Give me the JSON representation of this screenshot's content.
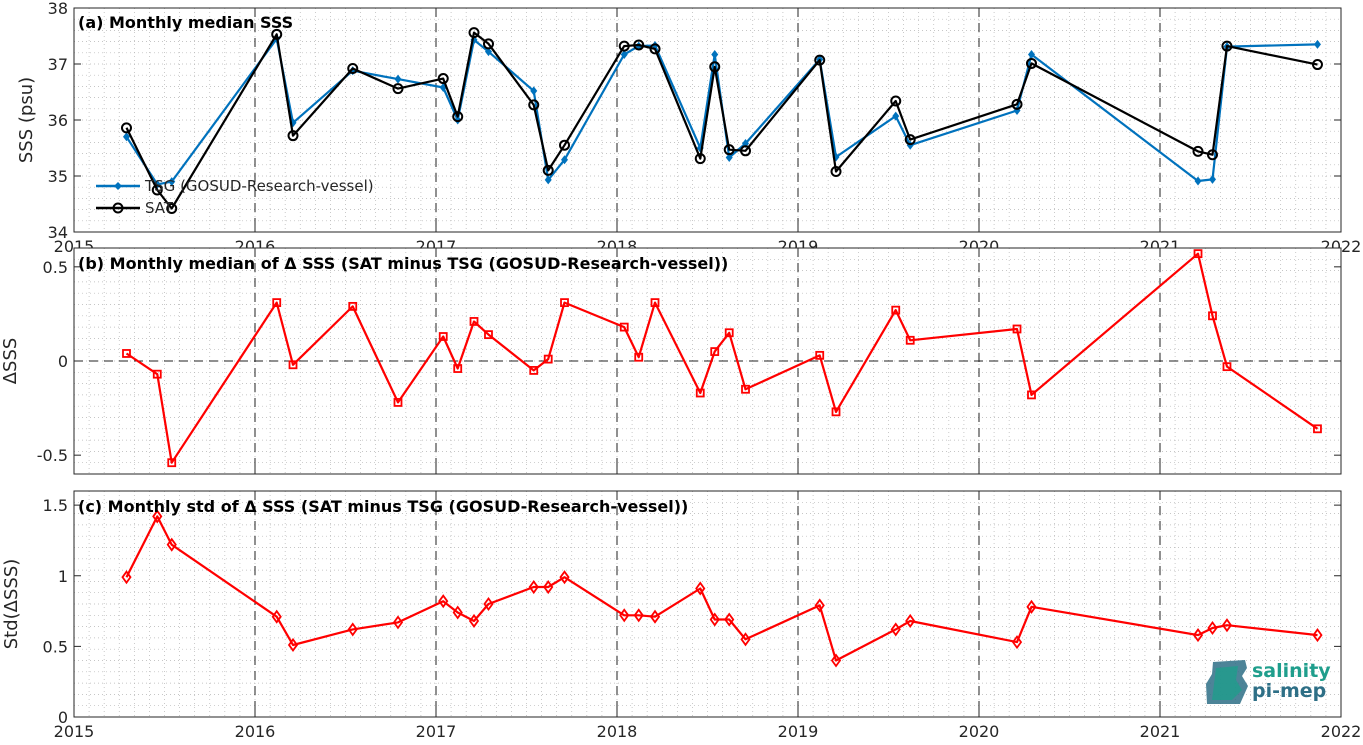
{
  "chart_data": [
    {
      "type": "line",
      "title": "(a) Monthly median SSS",
      "xlabel": "",
      "ylabel": "SSS (psu)",
      "xlim": [
        2015,
        2022
      ],
      "ylim": [
        34,
        38
      ],
      "xticks": [
        "2015",
        "2016",
        "2017",
        "2018",
        "2019",
        "2020",
        "2021",
        "2022"
      ],
      "yticks": [
        "34",
        "35",
        "36",
        "37",
        "38"
      ],
      "grid": true,
      "legend": "lower-left",
      "series": [
        {
          "name": "TSG (GOSUD-Research-vessel)",
          "color": "#0072BD",
          "marker": "diamond-filled",
          "x": [
            2015.29,
            2015.46,
            2015.54,
            2016.12,
            2016.21,
            2016.54,
            2016.79,
            2017.04,
            2017.12,
            2017.21,
            2017.29,
            2017.54,
            2017.62,
            2017.71,
            2018.04,
            2018.12,
            2018.21,
            2018.46,
            2018.54,
            2018.62,
            2018.71,
            2019.12,
            2019.21,
            2019.54,
            2019.62,
            2020.21,
            2020.29,
            2021.21,
            2021.29,
            2021.37,
            2021.87
          ],
          "y": [
            35.7,
            34.85,
            34.9,
            37.45,
            35.95,
            36.88,
            36.73,
            36.58,
            36.0,
            37.43,
            37.22,
            36.52,
            34.93,
            35.29,
            37.17,
            37.32,
            37.33,
            35.5,
            37.17,
            35.33,
            35.58,
            37.08,
            35.34,
            36.07,
            35.55,
            36.17,
            37.17,
            34.91,
            34.94,
            37.31,
            37.35
          ]
        },
        {
          "name": "SAT",
          "color": "#000000",
          "marker": "circle-open",
          "x": [
            2015.29,
            2015.46,
            2015.54,
            2016.12,
            2016.21,
            2016.54,
            2016.79,
            2017.04,
            2017.12,
            2017.21,
            2017.29,
            2017.54,
            2017.62,
            2017.71,
            2018.04,
            2018.12,
            2018.21,
            2018.46,
            2018.54,
            2018.62,
            2018.71,
            2019.12,
            2019.21,
            2019.54,
            2019.62,
            2020.21,
            2020.29,
            2021.21,
            2021.29,
            2021.37,
            2021.87
          ],
          "y": [
            35.86,
            34.75,
            34.42,
            37.53,
            35.72,
            36.92,
            36.56,
            36.74,
            36.06,
            37.56,
            37.36,
            36.27,
            35.1,
            35.55,
            37.32,
            37.34,
            37.27,
            35.31,
            36.95,
            35.47,
            35.45,
            37.07,
            35.08,
            36.34,
            35.65,
            36.28,
            37.01,
            35.44,
            35.38,
            37.32,
            36.99
          ]
        }
      ]
    },
    {
      "type": "line",
      "title": "(b) Monthly median of Δ SSS (SAT minus TSG (GOSUD-Research-vessel))",
      "xlabel": "",
      "ylabel": "ΔSSS",
      "xlim": [
        2015,
        2022
      ],
      "ylim": [
        -0.6,
        0.6
      ],
      "xticks": [],
      "yticks": [
        "-0.5",
        "0",
        "0.5"
      ],
      "grid": true,
      "reference_line": 0,
      "series": [
        {
          "color": "#FF0000",
          "marker": "square-open",
          "x": [
            2015.29,
            2015.46,
            2015.54,
            2016.12,
            2016.21,
            2016.54,
            2016.79,
            2017.04,
            2017.12,
            2017.21,
            2017.29,
            2017.54,
            2017.62,
            2017.71,
            2018.04,
            2018.12,
            2018.21,
            2018.46,
            2018.54,
            2018.62,
            2018.71,
            2019.12,
            2019.21,
            2019.54,
            2019.62,
            2020.21,
            2020.29,
            2021.21,
            2021.29,
            2021.37,
            2021.87
          ],
          "y": [
            0.04,
            -0.07,
            -0.54,
            0.31,
            -0.02,
            0.29,
            -0.22,
            0.13,
            -0.04,
            0.21,
            0.14,
            -0.05,
            0.01,
            0.31,
            0.18,
            0.02,
            0.31,
            -0.17,
            0.05,
            0.15,
            -0.15,
            0.03,
            -0.27,
            0.27,
            0.11,
            0.17,
            -0.18,
            0.57,
            0.24,
            -0.03,
            -0.36
          ]
        }
      ]
    },
    {
      "type": "line",
      "title": "(c) Monthly std of Δ SSS (SAT minus TSG (GOSUD-Research-vessel))",
      "xlabel": "",
      "ylabel": "Std(ΔSSS)",
      "xlim": [
        2015,
        2022
      ],
      "ylim": [
        0,
        1.6
      ],
      "xticks": [
        "2015",
        "2016",
        "2017",
        "2018",
        "2019",
        "2020",
        "2021",
        "2022"
      ],
      "yticks": [
        "0",
        "0.5",
        "1",
        "1.5"
      ],
      "grid": true,
      "series": [
        {
          "color": "#FF0000",
          "marker": "diamond-open",
          "x": [
            2015.29,
            2015.46,
            2015.54,
            2016.12,
            2016.21,
            2016.54,
            2016.79,
            2017.04,
            2017.12,
            2017.21,
            2017.29,
            2017.54,
            2017.62,
            2017.71,
            2018.04,
            2018.12,
            2018.21,
            2018.46,
            2018.54,
            2018.62,
            2018.71,
            2019.12,
            2019.21,
            2019.54,
            2019.62,
            2020.21,
            2020.29,
            2021.21,
            2021.29,
            2021.37,
            2021.87
          ],
          "y": [
            0.99,
            1.42,
            1.22,
            0.71,
            0.51,
            0.62,
            0.67,
            0.82,
            0.74,
            0.68,
            0.8,
            0.92,
            0.92,
            0.99,
            0.72,
            0.72,
            0.71,
            0.91,
            0.69,
            0.69,
            0.55,
            0.79,
            0.4,
            0.62,
            0.68,
            0.53,
            0.78,
            0.58,
            0.63,
            0.65,
            0.58
          ]
        }
      ]
    }
  ],
  "logo": {
    "line1": "salinity",
    "line2": "pi-mep",
    "colors": [
      "#1f9e8c",
      "#2e6f86"
    ]
  }
}
